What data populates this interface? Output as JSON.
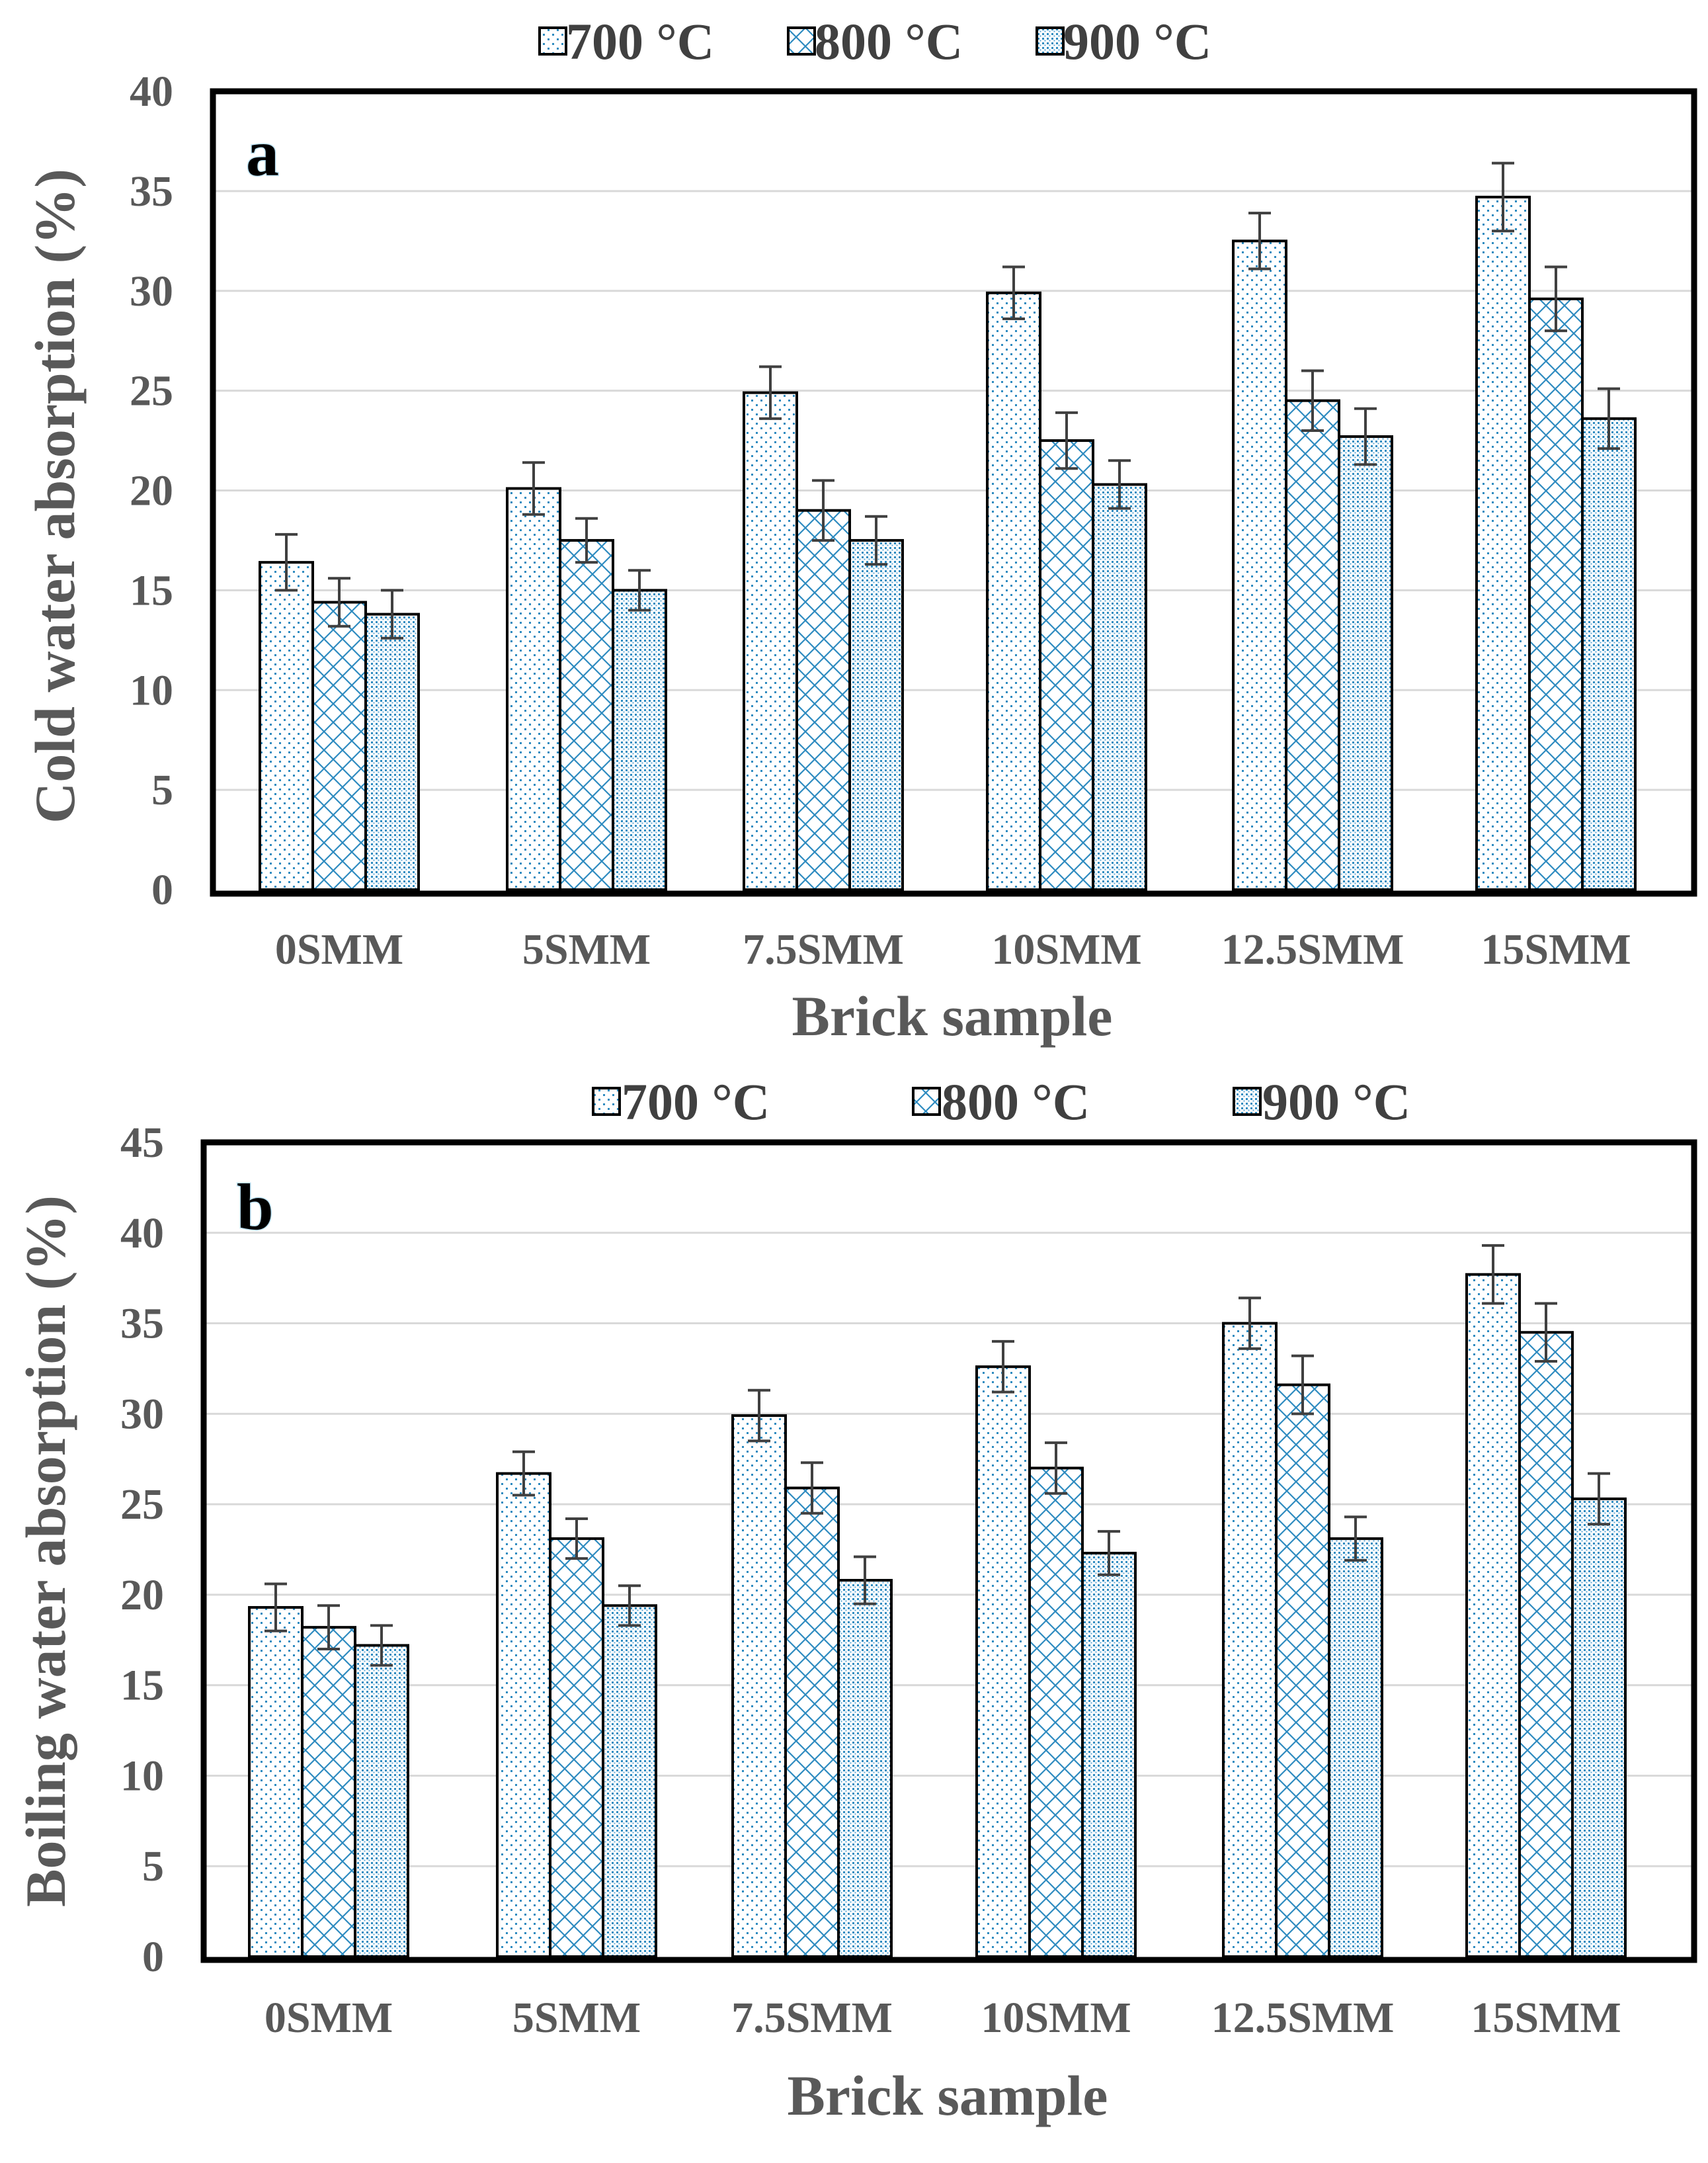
{
  "colors": {
    "pattern": "#2e8bc0",
    "bar_outline": "#000000",
    "grid": "#d9d9d9",
    "frame": "#000000",
    "error_bar": "#404040",
    "text": "#595959"
  },
  "chart_data": [
    {
      "type": "bar",
      "panel_label": "a",
      "xlabel": "Brick sample",
      "ylabel": "Cold water absorption (%)",
      "categories": [
        "0SMM",
        "5SMM",
        "7.5SMM",
        "10SMM",
        "12.5SMM",
        "15SMM"
      ],
      "series": [
        {
          "name": "700 °C",
          "pattern": "sparse-dots",
          "values": [
            16.4,
            20.1,
            24.9,
            29.9,
            32.5,
            34.7
          ],
          "errors": [
            1.4,
            1.3,
            1.3,
            1.3,
            1.4,
            1.7
          ]
        },
        {
          "name": "800 °C",
          "pattern": "diamond-crosshatch",
          "values": [
            14.4,
            17.5,
            19.0,
            22.5,
            24.5,
            29.6
          ],
          "errors": [
            1.2,
            1.1,
            1.5,
            1.4,
            1.5,
            1.6
          ]
        },
        {
          "name": "900 °C",
          "pattern": "dense-dots",
          "values": [
            13.8,
            15.0,
            17.5,
            20.3,
            22.7,
            23.6
          ],
          "errors": [
            1.2,
            1.0,
            1.2,
            1.2,
            1.4,
            1.5
          ]
        }
      ],
      "ylim": [
        0,
        40
      ],
      "yticks": [
        0,
        5,
        10,
        15,
        20,
        25,
        30,
        35,
        40
      ],
      "grid": true,
      "legend": "top-center"
    },
    {
      "type": "bar",
      "panel_label": "b",
      "xlabel": "Brick sample",
      "ylabel": "Boiling water absorption (%)",
      "categories": [
        "0SMM",
        "5SMM",
        "7.5SMM",
        "10SMM",
        "12.5SMM",
        "15SMM"
      ],
      "series": [
        {
          "name": "700 °C",
          "pattern": "sparse-dots",
          "values": [
            19.3,
            26.7,
            29.9,
            32.6,
            35.0,
            37.7
          ],
          "errors": [
            1.3,
            1.2,
            1.4,
            1.4,
            1.4,
            1.6
          ]
        },
        {
          "name": "800 °C",
          "pattern": "diamond-crosshatch",
          "values": [
            18.2,
            23.1,
            25.9,
            27.0,
            31.6,
            34.5
          ],
          "errors": [
            1.2,
            1.1,
            1.4,
            1.4,
            1.6,
            1.6
          ]
        },
        {
          "name": "900 °C",
          "pattern": "dense-dots",
          "values": [
            17.2,
            19.4,
            20.8,
            22.3,
            23.1,
            25.3
          ],
          "errors": [
            1.1,
            1.1,
            1.3,
            1.2,
            1.2,
            1.4
          ]
        }
      ],
      "ylim": [
        0,
        45
      ],
      "yticks": [
        0,
        5,
        10,
        15,
        20,
        25,
        30,
        35,
        40,
        45
      ],
      "grid": true,
      "legend": "top-center"
    }
  ]
}
